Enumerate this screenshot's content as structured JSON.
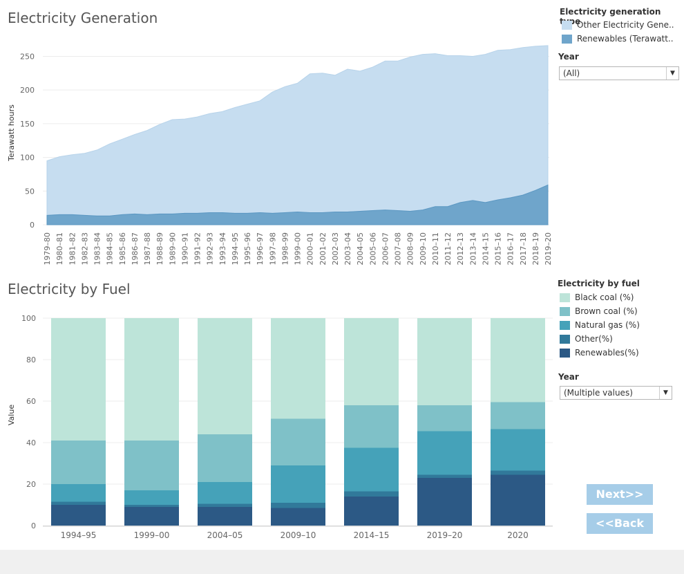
{
  "top": {
    "title": "Electricity Generation",
    "legend_title": "Electricity generation type",
    "legend": [
      {
        "label": "Other Electricity Gene..",
        "color": "#c6ddf0"
      },
      {
        "label": "Renewables (Terawatt..",
        "color": "#6fa5cb"
      }
    ],
    "filter_label": "Year",
    "filter_value": "(All)"
  },
  "bottom": {
    "title": "Electricity by Fuel",
    "legend_title": "Electricity by fuel",
    "legend": [
      {
        "label": "Black coal (%)",
        "color": "#bde4d9"
      },
      {
        "label": "Brown coal (%)",
        "color": "#7fc1c8"
      },
      {
        "label": "Natural gas (%)",
        "color": "#45a2b9"
      },
      {
        "label": "Other(%)",
        "color": "#31799a"
      },
      {
        "label": "Renewables(%)",
        "color": "#2c5985"
      }
    ],
    "filter_label": "Year",
    "filter_value": "(Multiple values)"
  },
  "buttons": {
    "next": "Next>>",
    "back": "<<Back"
  },
  "chart_data": [
    {
      "type": "area",
      "title": "Electricity Generation",
      "ylabel": "Terawatt hours",
      "xlabel": "",
      "ylim": [
        0,
        270
      ],
      "yticks": [
        0,
        50,
        100,
        150,
        200,
        250
      ],
      "stacked": true,
      "categories": [
        "1979–80",
        "1980–81",
        "1981–82",
        "1982–83",
        "1983–84",
        "1984–85",
        "1985–86",
        "1986–87",
        "1987–88",
        "1988–89",
        "1989–90",
        "1990–91",
        "1991–92",
        "1992–93",
        "1993–94",
        "1994–95",
        "1995–96",
        "1996–97",
        "1997–98",
        "1998–99",
        "1999–00",
        "2000–01",
        "2001–02",
        "2002–03",
        "2003–04",
        "2004–05",
        "2005–06",
        "2006–07",
        "2007–08",
        "2008–09",
        "2009–10",
        "2010–11",
        "2011–12",
        "2012–13",
        "2013–14",
        "2014–15",
        "2015–16",
        "2016–17",
        "2017–18",
        "2018–19",
        "2019–20"
      ],
      "series": [
        {
          "name": "Renewables (Terawatt hours)",
          "values": [
            14,
            15,
            15,
            14,
            13,
            13,
            15,
            16,
            15,
            16,
            16,
            17,
            17,
            18,
            18,
            17,
            17,
            18,
            17,
            18,
            19,
            18,
            18,
            19,
            19,
            20,
            21,
            22,
            21,
            20,
            22,
            27,
            27,
            33,
            36,
            33,
            37,
            40,
            44,
            51,
            59
          ]
        },
        {
          "name": "Other Electricity Generation",
          "values": [
            81,
            86,
            89,
            92,
            98,
            107,
            112,
            118,
            125,
            133,
            140,
            140,
            143,
            147,
            150,
            157,
            162,
            166,
            180,
            187,
            191,
            206,
            207,
            203,
            212,
            208,
            213,
            221,
            222,
            229,
            231,
            227,
            224,
            218,
            214,
            220,
            222,
            220,
            219,
            214,
            207
          ]
        }
      ]
    },
    {
      "type": "bar",
      "title": "Electricity by Fuel",
      "ylabel": "Value",
      "xlabel": "",
      "ylim": [
        0,
        100
      ],
      "yticks": [
        0,
        20,
        40,
        60,
        80,
        100
      ],
      "stacked": true,
      "categories": [
        "1994–95",
        "1999–00",
        "2004–05",
        "2009–10",
        "2014–15",
        "2019–20",
        "2020"
      ],
      "series": [
        {
          "name": "Renewables(%)",
          "values": [
            10,
            9,
            9,
            8.5,
            14,
            23,
            24.5
          ]
        },
        {
          "name": "Other(%)",
          "values": [
            1.5,
            1,
            1.5,
            2.5,
            2.5,
            1.5,
            2
          ]
        },
        {
          "name": "Natural gas (%)",
          "values": [
            8.5,
            7,
            10.5,
            18,
            21,
            21,
            20
          ]
        },
        {
          "name": "Brown coal (%)",
          "values": [
            21,
            24,
            23,
            22.5,
            20.5,
            12.5,
            13
          ]
        },
        {
          "name": "Black coal (%)",
          "values": [
            59,
            59,
            56,
            48.5,
            42,
            42,
            40.5
          ]
        }
      ]
    }
  ]
}
